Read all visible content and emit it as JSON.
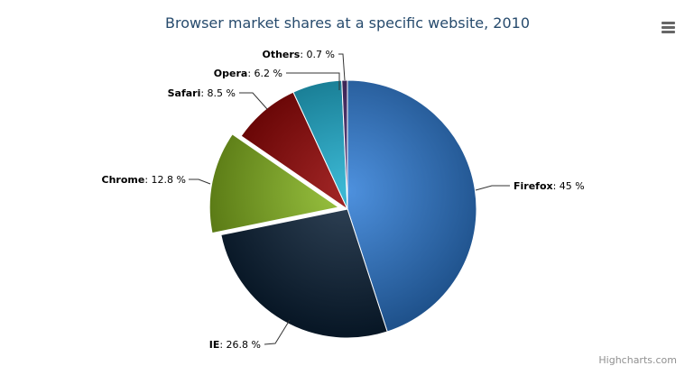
{
  "chart_data": {
    "type": "pie",
    "title": "Browser market shares at a specific website, 2010",
    "categories": [
      "Firefox",
      "IE",
      "Chrome",
      "Safari",
      "Opera",
      "Others"
    ],
    "values": [
      45.0,
      26.8,
      12.8,
      8.5,
      6.2,
      0.7
    ],
    "value_suffix": " %",
    "sliced": [
      "Chrome"
    ],
    "colors": [
      "#2f7ed8",
      "#0d233a",
      "#8bbc21",
      "#910000",
      "#1aadce",
      "#492970"
    ],
    "legend": "none"
  },
  "credits": "Highcharts.com",
  "menu_icon": "hamburger-menu-icon"
}
